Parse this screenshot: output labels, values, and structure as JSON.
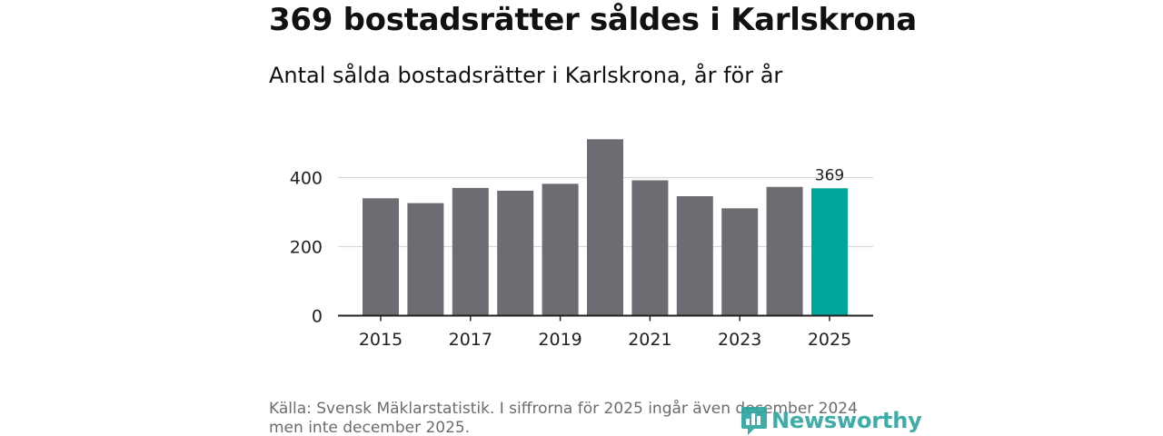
{
  "header": {
    "title": "369 bostadsrätter såldes i Karlskrona",
    "subtitle": "Antal sålda bostadsrätter i Karlskrona, år för år"
  },
  "footer": {
    "source": "Källa: Svensk Mäklarstatistik. I siffrorna för 2025 ingår även december 2024 men inte december 2025.",
    "logo_text": "Newsworthy"
  },
  "colors": {
    "bar": "#6d6c72",
    "highlight": "#00a59b",
    "grid": "#d9d9d9",
    "axis": "#222222",
    "logo": "#2ea5a0"
  },
  "chart_data": {
    "type": "bar",
    "title": "Antal sålda bostadsrätter i Karlskrona, år för år",
    "xlabel": "",
    "ylabel": "",
    "categories": [
      "2015",
      "2016",
      "2017",
      "2018",
      "2019",
      "2020",
      "2021",
      "2022",
      "2023",
      "2024",
      "2025"
    ],
    "values": [
      340,
      326,
      370,
      362,
      382,
      511,
      392,
      346,
      311,
      373,
      369
    ],
    "highlight_index": 10,
    "data_labels": [
      {
        "index": 10,
        "text": "369"
      }
    ],
    "x_tick_labels": [
      "2015",
      "2017",
      "2019",
      "2021",
      "2023",
      "2025"
    ],
    "y_ticks": [
      0,
      200,
      400
    ],
    "y_tick_labels": [
      "0",
      "200",
      "400"
    ],
    "ylim": [
      0,
      560
    ],
    "grid": "horizontal",
    "legend": "none"
  }
}
